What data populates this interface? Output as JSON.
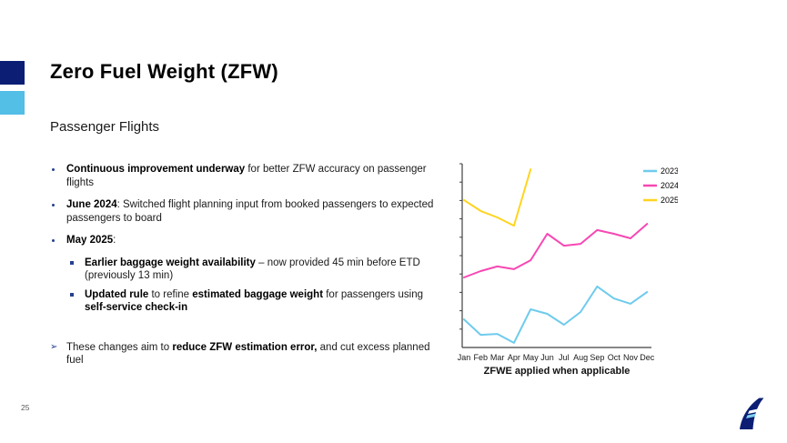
{
  "slide": {
    "title": "Zero Fuel Weight (ZFW)",
    "subtitle": "Passenger Flights",
    "page_number": "25"
  },
  "colors": {
    "accent_navy": "#0B1E74",
    "accent_light_blue": "#53BEE6",
    "bullet_navy": "#26408F",
    "axis_gray": "#404040",
    "body_text": "#1a1a1a"
  },
  "bullets": [
    {
      "marker": "dot",
      "level": 1,
      "gap_before": false,
      "segments": [
        {
          "bold": true,
          "text": "Continuous improvement underway"
        },
        {
          "bold": false,
          "text": " for better ZFW accuracy on passenger flights"
        }
      ]
    },
    {
      "marker": "dot",
      "level": 1,
      "gap_before": false,
      "segments": [
        {
          "bold": true,
          "text": "June 2024"
        },
        {
          "bold": false,
          "text": ": Switched flight planning input from booked passengers to expected passengers to board"
        }
      ]
    },
    {
      "marker": "dot",
      "level": 1,
      "gap_before": false,
      "segments": [
        {
          "bold": true,
          "text": "May 2025"
        },
        {
          "bold": false,
          "text": ":"
        }
      ]
    },
    {
      "marker": "square",
      "level": 2,
      "gap_before": false,
      "segments": [
        {
          "bold": true,
          "text": "Earlier baggage weight availability"
        },
        {
          "bold": false,
          "text": " – now provided 45 min before ETD (previously 13 min)"
        }
      ]
    },
    {
      "marker": "square",
      "level": 2,
      "gap_before": false,
      "segments": [
        {
          "bold": true,
          "text": "Updated rule"
        },
        {
          "bold": false,
          "text": " to refine "
        },
        {
          "bold": true,
          "text": "estimated baggage weight"
        },
        {
          "bold": false,
          "text": " for passengers using "
        },
        {
          "bold": true,
          "text": "self-service check-in"
        }
      ]
    },
    {
      "marker": "arrow",
      "level": 1,
      "gap_before": true,
      "segments": [
        {
          "bold": false,
          "text": "These changes aim to "
        },
        {
          "bold": true,
          "text": "reduce ZFW estimation error,"
        },
        {
          "bold": false,
          "text": " and cut excess planned fuel"
        }
      ]
    }
  ],
  "chart_data": {
    "type": "line",
    "title": "",
    "xlabel": "",
    "ylabel": "",
    "caption": "ZFWE applied when applicable",
    "x": [
      "Jan",
      "Feb",
      "Mar",
      "Apr",
      "May",
      "Jun",
      "Jul",
      "Aug",
      "Sep",
      "Oct",
      "Nov",
      "Dec"
    ],
    "series": [
      {
        "name": "2023",
        "color": "#6FCBEC",
        "values": [
          15.3,
          6.9,
          7.4,
          2.5,
          20.8,
          18.3,
          12.4,
          19.3,
          33.2,
          26.7,
          23.8,
          30.2
        ]
      },
      {
        "name": "2024",
        "color": "#F747B3",
        "values": [
          38.1,
          41.6,
          44.1,
          42.6,
          47.5,
          61.9,
          55.4,
          56.4,
          63.9,
          61.9,
          59.4,
          67.3
        ]
      },
      {
        "name": "2025",
        "color": "#FFD41F",
        "values": [
          80.2,
          74.3,
          70.8,
          66.3,
          97.0
        ]
      }
    ],
    "ylim": [
      0,
      100
    ],
    "y_tick_count": 10,
    "y_tick_labels": [],
    "grid": false,
    "legend_position": "top-right"
  }
}
